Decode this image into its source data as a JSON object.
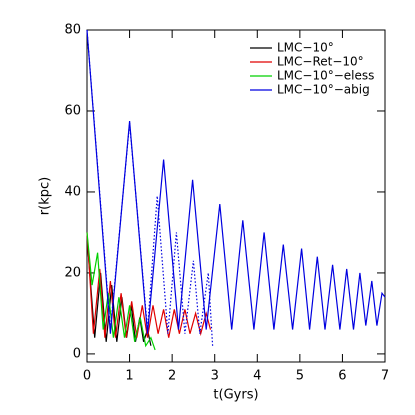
{
  "chart_data": {
    "type": "line",
    "xlabel": "t(Gyrs)",
    "ylabel": "r(kpc)",
    "xlim": [
      0,
      7
    ],
    "ylim": [
      -2,
      80
    ],
    "xticks": [
      0,
      1,
      2,
      3,
      4,
      5,
      6,
      7
    ],
    "yticks": [
      0,
      20,
      40,
      60,
      80
    ],
    "legend": "upper right",
    "series": [
      {
        "name": "LMC−10°",
        "color": "#000000",
        "x": [
          0,
          0.18,
          0.32,
          0.45,
          0.58,
          0.7,
          0.82,
          0.93,
          1.04,
          1.14,
          1.24,
          1.33,
          1.42,
          1.5
        ],
        "values": [
          29,
          4,
          20,
          3,
          17,
          3,
          14,
          4,
          12,
          3,
          9,
          3,
          6,
          2
        ]
      },
      {
        "name": "LMC−Ret−10°",
        "color": "#e00000",
        "x": [
          0,
          0.15,
          0.3,
          0.42,
          0.55,
          0.67,
          0.8,
          0.92,
          1.05,
          1.17,
          1.3,
          1.42,
          1.55,
          1.67,
          1.8,
          1.92,
          2.05,
          2.17,
          2.3,
          2.42,
          2.55,
          2.67,
          2.8,
          2.9
        ],
        "values": [
          30,
          5,
          21,
          4,
          18,
          4,
          15,
          4,
          13,
          4,
          12,
          4,
          12,
          5,
          11,
          4,
          11,
          5,
          11,
          5,
          10,
          5,
          10,
          6
        ]
      },
      {
        "name": "LMC−10°−eless",
        "color": "#00d000",
        "x": [
          0,
          0.12,
          0.25,
          0.38,
          0.5,
          0.62,
          0.75,
          0.88,
          1.0,
          1.12,
          1.25,
          1.38,
          1.5,
          1.6
        ],
        "values": [
          30,
          17,
          25,
          6,
          15,
          4,
          14,
          4,
          12,
          3,
          9,
          2,
          4,
          1
        ]
      },
      {
        "name": "LMC−10°−abig",
        "color": "#0000e0",
        "x": [
          0,
          0.55,
          1.0,
          1.42,
          1.8,
          2.15,
          2.48,
          2.8,
          3.12,
          3.4,
          3.66,
          3.92,
          4.16,
          4.39,
          4.61,
          4.83,
          5.04,
          5.23,
          5.41,
          5.59,
          5.77,
          5.94,
          6.1,
          6.26,
          6.41,
          6.55,
          6.69,
          6.81,
          6.93,
          7.0
        ],
        "values": [
          80,
          5,
          57.5,
          5,
          48,
          6,
          43,
          6,
          37,
          6,
          33,
          6,
          30,
          6,
          27,
          6,
          26,
          6,
          24,
          6,
          22,
          6,
          21,
          6,
          20,
          7,
          18,
          7,
          15,
          14
        ]
      },
      {
        "color": "#0000e0",
        "style": "dotted",
        "x": [
          0,
          0.55,
          1.0,
          1.42,
          1.65,
          1.9,
          2.1,
          2.3,
          2.5,
          2.65,
          2.85,
          2.95
        ],
        "values": [
          80,
          6,
          57,
          6,
          39,
          5,
          30,
          5,
          23,
          5,
          20,
          2
        ]
      }
    ]
  }
}
